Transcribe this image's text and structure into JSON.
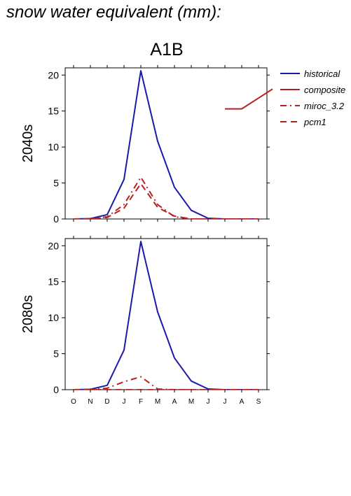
{
  "page": {
    "title": "snow water equivalent (mm):",
    "scenario": "A1B"
  },
  "colors": {
    "historical": "#1a1aaa",
    "future": "#b22222",
    "axis": "#000000"
  },
  "chart_data": [
    {
      "type": "line",
      "panel_label": "2040s",
      "categories": [
        "O",
        "N",
        "D",
        "J",
        "F",
        "M",
        "A",
        "M",
        "J",
        "J",
        "A",
        "S"
      ],
      "ylim": [
        0,
        21
      ],
      "yticks": [
        0,
        5,
        10,
        15,
        20
      ],
      "series": [
        {
          "name": "historical",
          "dash": "solid",
          "color": "#1a1aaa",
          "values": [
            0,
            0.05,
            0.6,
            5.5,
            20.6,
            10.8,
            4.4,
            1.2,
            0.1,
            0,
            0,
            0
          ]
        },
        {
          "name": "composite",
          "dash": "solid",
          "color": "#b22222",
          "values": [
            null,
            null,
            null,
            null,
            null,
            null,
            null,
            null,
            null,
            15.3,
            15.3,
            16.8
          ]
        },
        {
          "name": "miroc_3.2",
          "dash": "dashdot",
          "color": "#b22222",
          "values": [
            0,
            0,
            0.3,
            2.0,
            5.8,
            2.0,
            0.3,
            0,
            0,
            0,
            0,
            0
          ]
        },
        {
          "name": "pcm1",
          "dash": "dash",
          "color": "#b22222",
          "values": [
            0,
            0,
            0.2,
            1.5,
            4.9,
            1.6,
            0.4,
            0,
            0,
            0,
            0,
            0
          ]
        }
      ],
      "legend": [
        "historical",
        "composite",
        "miroc_3.2",
        "pcm1"
      ],
      "legend_position": "right"
    },
    {
      "type": "line",
      "panel_label": "2080s",
      "categories": [
        "O",
        "N",
        "D",
        "J",
        "F",
        "M",
        "A",
        "M",
        "J",
        "J",
        "A",
        "S"
      ],
      "ylim": [
        0,
        21
      ],
      "yticks": [
        0,
        5,
        10,
        15,
        20
      ],
      "series": [
        {
          "name": "historical",
          "dash": "solid",
          "color": "#1a1aaa",
          "values": [
            0,
            0.05,
            0.6,
            5.5,
            20.6,
            10.8,
            4.4,
            1.2,
            0.1,
            0,
            0,
            0
          ]
        },
        {
          "name": "miroc_3.2",
          "dash": "dashdot",
          "color": "#b22222",
          "values": [
            0,
            0,
            0.2,
            1.1,
            1.8,
            0.1,
            0,
            0,
            0,
            0,
            0,
            0
          ]
        },
        {
          "name": "pcm1",
          "dash": "dash",
          "color": "#b22222",
          "values": [
            0,
            0,
            0,
            0,
            0,
            0,
            0,
            0,
            0,
            0,
            0,
            0
          ]
        }
      ]
    }
  ]
}
